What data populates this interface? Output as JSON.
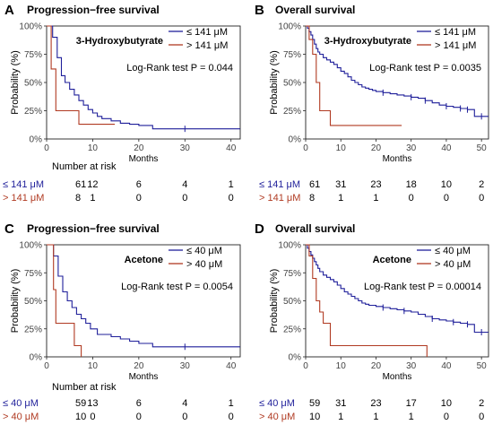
{
  "colors": {
    "low": "#1f1f9a",
    "high": "#b03a22",
    "axis": "#222222",
    "tick": "#444444"
  },
  "chart_data": [
    {
      "panel": "A",
      "type": "line",
      "title": "Progression−free survival",
      "metabolite": "3-Hydroxybutyrate",
      "xlabel": "Months",
      "ylabel": "Probability (%)",
      "xlim": [
        0,
        42
      ],
      "ylim": [
        0,
        100
      ],
      "xticks": [
        0,
        10,
        20,
        30,
        40
      ],
      "yticks": [
        "0%",
        "25%",
        "50%",
        "75%",
        "100%"
      ],
      "logrank": "Log-Rank test P = 0.044",
      "legend_position": "top-right",
      "series": [
        {
          "name": "≤ 141 μM",
          "color": "low",
          "x": [
            0,
            1.3,
            2.3,
            3.2,
            4.0,
            5.0,
            6.0,
            7.0,
            8.0,
            9.0,
            10.0,
            11.0,
            12.0,
            14.0,
            16.0,
            18.0,
            20.0,
            23.0,
            42
          ],
          "y": [
            100,
            90,
            72,
            56,
            50,
            44,
            39,
            34,
            30,
            26,
            23,
            20,
            18,
            16,
            14,
            13,
            12,
            9,
            9
          ],
          "censored": [
            [
              30,
              9
            ]
          ]
        },
        {
          "name": "> 141 μM",
          "color": "high",
          "x": [
            0,
            1.0,
            2.0,
            7.0,
            14.8
          ],
          "y": [
            100,
            62,
            25,
            13,
            13
          ],
          "censored": []
        }
      ],
      "risk_table": {
        "title": "Number at risk",
        "times": [
          0,
          10,
          20,
          30,
          40
        ],
        "rows": [
          {
            "label": "≤ 141 μM",
            "color": "low",
            "values": [
              "61",
              "12",
              "6",
              "4",
              "1"
            ]
          },
          {
            "label": "> 141 μM",
            "color": "high",
            "values": [
              "8",
              "1",
              "0",
              "0",
              "0"
            ]
          }
        ]
      }
    },
    {
      "panel": "B",
      "type": "line",
      "title": "Overall survival",
      "metabolite": "3-Hydroxybutyrate",
      "xlabel": "Months",
      "ylabel": "Probability (%)",
      "xlim": [
        0,
        52
      ],
      "ylim": [
        0,
        100
      ],
      "xticks": [
        0,
        10,
        20,
        30,
        40,
        50
      ],
      "yticks": [
        "0%",
        "25%",
        "50%",
        "75%",
        "100%"
      ],
      "logrank": "Log-Rank test P = 0.0035",
      "legend_position": "top-right",
      "series": [
        {
          "name": "≤ 141 μM",
          "color": "low",
          "x": [
            0,
            0.5,
            1.0,
            1.5,
            2.0,
            2.5,
            3.0,
            3.5,
            4.0,
            5.0,
            6.0,
            7.0,
            8.0,
            9.0,
            10.0,
            11.0,
            12.0,
            13.0,
            14.0,
            15.0,
            16.0,
            17.0,
            18.0,
            19.0,
            20.0,
            22.0,
            24.0,
            26.0,
            28.0,
            30.0,
            32.0,
            34.0,
            36.0,
            38.0,
            40.0,
            42.0,
            44.0,
            46.0,
            48.0,
            52
          ],
          "y": [
            100,
            98,
            95,
            92,
            88,
            84,
            80,
            77,
            75,
            72,
            70,
            68,
            66,
            63,
            60,
            58,
            55,
            52,
            50,
            48,
            46,
            45,
            44,
            43,
            42,
            41,
            40,
            39,
            38,
            37,
            36,
            34,
            32,
            30,
            29,
            28,
            27,
            26,
            20,
            20
          ],
          "censored": [
            [
              22,
              41
            ],
            [
              30,
              37
            ],
            [
              34,
              34
            ],
            [
              40,
              29
            ],
            [
              44,
              27
            ],
            [
              46,
              26
            ],
            [
              50,
              20
            ]
          ]
        },
        {
          "name": "> 141 μM",
          "color": "high",
          "x": [
            0,
            1.0,
            2.0,
            3.0,
            4.0,
            7.0,
            27.3
          ],
          "y": [
            100,
            88,
            75,
            50,
            25,
            12,
            12
          ],
          "censored": []
        }
      ],
      "risk_table": {
        "title": "",
        "times": [
          0,
          10,
          20,
          30,
          40,
          50
        ],
        "rows": [
          {
            "label": "≤ 141 μM",
            "color": "low",
            "values": [
              "61",
              "31",
              "23",
              "18",
              "10",
              "2"
            ]
          },
          {
            "label": "> 141 μM",
            "color": "high",
            "values": [
              "8",
              "1",
              "1",
              "0",
              "0",
              "0"
            ]
          }
        ]
      }
    },
    {
      "panel": "C",
      "type": "line",
      "title": "Progression−free survival",
      "metabolite": "Acetone",
      "xlabel": "Months",
      "ylabel": "Probability (%)",
      "xlim": [
        0,
        42
      ],
      "ylim": [
        0,
        100
      ],
      "xticks": [
        0,
        10,
        20,
        30,
        40
      ],
      "yticks": [
        "0%",
        "25%",
        "50%",
        "75%",
        "100%"
      ],
      "logrank": "Log-Rank test P = 0.0054",
      "legend_position": "top-right",
      "series": [
        {
          "name": "≤ 40 μM",
          "color": "low",
          "x": [
            0,
            1.5,
            2.5,
            3.5,
            4.5,
            5.5,
            6.5,
            7.5,
            8.5,
            9.5,
            11.0,
            14.0,
            16.0,
            18.0,
            20.0,
            23.0,
            42
          ],
          "y": [
            100,
            90,
            72,
            58,
            50,
            44,
            38,
            34,
            30,
            25,
            20,
            18,
            16,
            14,
            12,
            9,
            9
          ],
          "censored": [
            [
              30,
              9
            ]
          ]
        },
        {
          "name": "> 40 μM",
          "color": "high",
          "x": [
            0,
            1.5,
            2.0,
            6.0,
            7.5
          ],
          "y": [
            100,
            60,
            30,
            10,
            0
          ],
          "censored": []
        }
      ],
      "risk_table": {
        "title": "Number at risk",
        "times": [
          0,
          10,
          20,
          30,
          40
        ],
        "rows": [
          {
            "label": "≤ 40 μM",
            "color": "low",
            "values": [
              "59",
              "13",
              "6",
              "4",
              "1"
            ]
          },
          {
            "label": "> 40 μM",
            "color": "high",
            "values": [
              "10",
              "0",
              "0",
              "0",
              "0"
            ]
          }
        ]
      }
    },
    {
      "panel": "D",
      "type": "line",
      "title": "Overall survival",
      "metabolite": "Acetone",
      "xlabel": "Months",
      "ylabel": "Probability (%)",
      "xlim": [
        0,
        52
      ],
      "ylim": [
        0,
        100
      ],
      "xticks": [
        0,
        10,
        20,
        30,
        40,
        50
      ],
      "yticks": [
        "0%",
        "25%",
        "50%",
        "75%",
        "100%"
      ],
      "logrank": "Log-Rank test P = 0.00014",
      "legend_position": "top-right",
      "series": [
        {
          "name": "≤ 40 μM",
          "color": "low",
          "x": [
            0,
            0.5,
            1.0,
            1.5,
            2.0,
            2.5,
            3.0,
            3.5,
            4.0,
            5.0,
            6.0,
            7.0,
            8.0,
            9.0,
            10.0,
            11.0,
            12.0,
            13.0,
            14.0,
            15.0,
            16.0,
            17.0,
            18.0,
            20.0,
            22.0,
            24.0,
            26.0,
            28.0,
            30.0,
            32.0,
            34.0,
            36.0,
            38.0,
            40.0,
            42.0,
            44.0,
            46.0,
            48.0,
            52
          ],
          "y": [
            100,
            97,
            94,
            91,
            88,
            85,
            82,
            79,
            76,
            73,
            71,
            69,
            67,
            64,
            61,
            58,
            56,
            54,
            52,
            50,
            48,
            47,
            46,
            45,
            44,
            43,
            42,
            41,
            40,
            38,
            36,
            34,
            33,
            32,
            31,
            30,
            29,
            22,
            22
          ],
          "censored": [
            [
              22,
              44
            ],
            [
              28,
              41
            ],
            [
              36,
              34
            ],
            [
              42,
              31
            ],
            [
              46,
              29
            ],
            [
              50,
              22
            ]
          ]
        },
        {
          "name": "> 40 μM",
          "color": "high",
          "x": [
            0,
            1.0,
            2.0,
            3.0,
            4.0,
            5.0,
            7.0,
            34.5
          ],
          "y": [
            100,
            90,
            70,
            50,
            40,
            30,
            10,
            0
          ],
          "censored": []
        }
      ],
      "risk_table": {
        "title": "",
        "times": [
          0,
          10,
          20,
          30,
          40,
          50
        ],
        "rows": [
          {
            "label": "≤ 40 μM",
            "color": "low",
            "values": [
              "59",
              "31",
              "23",
              "17",
              "10",
              "2"
            ]
          },
          {
            "label": "> 40 μM",
            "color": "high",
            "values": [
              "10",
              "1",
              "1",
              "1",
              "0",
              "0"
            ]
          }
        ]
      }
    }
  ]
}
